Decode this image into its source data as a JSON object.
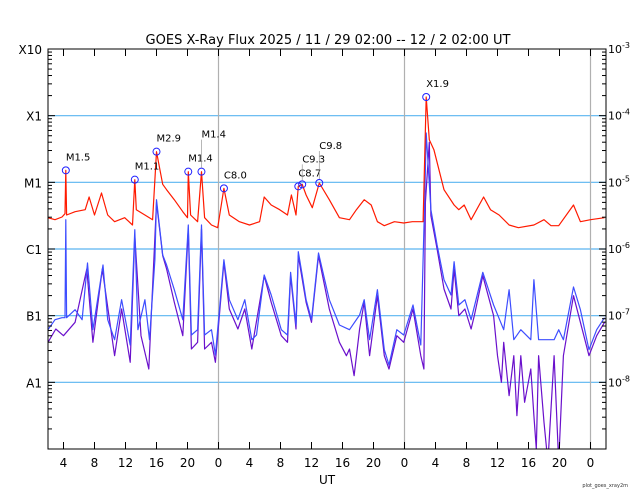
{
  "chart_data": {
    "type": "line",
    "title": "GOES X-Ray Flux   2025 / 11 / 29   02:00 -- 12 /  2   02:00   UT",
    "xlabel": "UT",
    "x_units": "hours since 2025-11-29 02:00 UT",
    "xlim": [
      0,
      72
    ],
    "ylim_log10": [
      -9,
      -3
    ],
    "y_scale": "log",
    "credit": "plot_goes_xray2m",
    "x_ticks": [
      {
        "h": 2,
        "label": "4"
      },
      {
        "h": 6,
        "label": "8"
      },
      {
        "h": 10,
        "label": "12"
      },
      {
        "h": 14,
        "label": "16"
      },
      {
        "h": 18,
        "label": "20"
      },
      {
        "h": 22,
        "label": "0"
      },
      {
        "h": 26,
        "label": "4"
      },
      {
        "h": 30,
        "label": "8"
      },
      {
        "h": 34,
        "label": "12"
      },
      {
        "h": 38,
        "label": "16"
      },
      {
        "h": 42,
        "label": "20"
      },
      {
        "h": 46,
        "label": "0"
      },
      {
        "h": 50,
        "label": "4"
      },
      {
        "h": 54,
        "label": "8"
      },
      {
        "h": 58,
        "label": "12"
      },
      {
        "h": 62,
        "label": "16"
      },
      {
        "h": 66,
        "label": "20"
      },
      {
        "h": 70,
        "label": "0"
      }
    ],
    "day_boundaries_h": [
      22,
      46,
      70
    ],
    "left_axis_labels": [
      {
        "log": -3,
        "label": "X10"
      },
      {
        "log": -4,
        "label": "X1"
      },
      {
        "log": -5,
        "label": "M1"
      },
      {
        "log": -6,
        "label": "C1"
      },
      {
        "log": -7,
        "label": "B1"
      },
      {
        "log": -8,
        "label": "A1"
      }
    ],
    "right_axis_labels": [
      {
        "log": -3,
        "base": "10",
        "exp": "-3"
      },
      {
        "log": -4,
        "base": "10",
        "exp": "-4"
      },
      {
        "log": -5,
        "base": "10",
        "exp": "-5"
      },
      {
        "log": -6,
        "base": "10",
        "exp": "-6"
      },
      {
        "log": -7,
        "base": "10",
        "exp": "-7"
      },
      {
        "log": -8,
        "base": "10",
        "exp": "-8"
      }
    ],
    "class_gridlines_log": [
      -4,
      -5,
      -6,
      -7,
      -8
    ],
    "colors": {
      "long": "#ff1a00",
      "short": "#3d4dff",
      "short_secondary": "#6a10cc",
      "grid": "#5ab4f0",
      "day": "#b0b0b0",
      "marker": "#2020ff"
    },
    "series": [
      {
        "name": "short_secondary",
        "h": [
          0,
          1,
          2,
          3.5,
          5,
          5.8,
          7,
          8.6,
          9.5,
          10.6,
          11.2,
          12,
          13,
          14,
          14.8,
          15.3,
          16.3,
          17.4,
          18.1,
          18.5,
          19.3,
          19.8,
          20.2,
          21.1,
          21.6,
          22.7,
          23.4,
          24.5,
          25.4,
          26.3,
          27.9,
          28.8,
          30.1,
          30.9,
          31.3,
          32,
          32.3,
          33.3,
          34,
          34.9,
          36.3,
          37.6,
          38.5,
          38.9,
          39.5,
          40.2,
          40.8,
          41.5,
          42.5,
          43.4,
          44,
          45,
          45.9,
          47.1,
          48.1,
          48.5,
          48.7,
          49.2,
          49.4,
          50.2,
          51.1,
          52,
          52.4,
          53,
          53.8,
          54.6,
          55,
          56.1,
          57.5,
          58,
          58.5,
          58.8,
          59.5,
          60.1,
          60.5,
          61,
          61.5,
          62.3,
          62.7,
          63,
          63.3,
          64,
          64.5,
          65.3,
          65.9,
          66.5,
          67.8,
          68.7,
          69.8,
          70.8,
          71.8
        ],
        "log": [
          -7.4,
          -7.2,
          -7.3,
          -7.1,
          -6.3,
          -7.4,
          -6.3,
          -7.6,
          -6.9,
          -7.7,
          -5.8,
          -7.3,
          -7.8,
          -5.3,
          -6.1,
          -6.3,
          -6.8,
          -7.3,
          -5.7,
          -7.5,
          -7.4,
          -5.7,
          -7.5,
          -7.4,
          -7.7,
          -6.2,
          -6.9,
          -7.2,
          -6.9,
          -7.5,
          -6.4,
          -6.8,
          -7.3,
          -7.4,
          -6.4,
          -7.2,
          -6.1,
          -6.8,
          -7.1,
          -6.1,
          -6.9,
          -7.4,
          -7.6,
          -7.5,
          -7.9,
          -7.2,
          -6.8,
          -7.6,
          -6.7,
          -7.6,
          -7.8,
          -7.3,
          -7.4,
          -6.9,
          -7.6,
          -7.8,
          -5.3,
          -4.4,
          -5.5,
          -6.0,
          -6.6,
          -6.9,
          -6.3,
          -7.0,
          -6.9,
          -7.2,
          -7.0,
          -6.4,
          -7.0,
          -7.6,
          -8.0,
          -7.4,
          -8.2,
          -7.6,
          -8.5,
          -7.6,
          -8.3,
          -7.8,
          -8.5,
          -9.0,
          -7.6,
          -8.6,
          -9.2,
          -7.6,
          -9.2,
          -7.6,
          -6.7,
          -7.1,
          -7.6,
          -7.3,
          -7.1
        ]
      },
      {
        "name": "short",
        "h": [
          0,
          0.9,
          1.8,
          2.2,
          2.3,
          2.4,
          3.5,
          4.4,
          5.1,
          5.8,
          7.1,
          7.7,
          8.6,
          9.5,
          10.6,
          11.2,
          11.6,
          12.5,
          13.1,
          13.8,
          14,
          14.8,
          15.3,
          16.3,
          17.4,
          18.1,
          18.5,
          19.3,
          19.8,
          20.2,
          21.1,
          21.6,
          22.7,
          23.4,
          24.5,
          25.4,
          26.3,
          26.9,
          27.9,
          28.8,
          30.1,
          30.9,
          31.3,
          32,
          32.3,
          32.8,
          33.3,
          34,
          34.9,
          36.3,
          37.6,
          38.9,
          40.2,
          40.8,
          41.5,
          42.5,
          43.4,
          44,
          45,
          45.9,
          47.1,
          48.1,
          48.6,
          48.8,
          49.4,
          50.2,
          51.1,
          52,
          52.4,
          53,
          53.8,
          54.6,
          56.1,
          57.5,
          58.8,
          59.5,
          60.1,
          61,
          62.3,
          62.7,
          63.3,
          65.3,
          65.9,
          66.5,
          67.8,
          68.7,
          69.8,
          70.8,
          71.8
        ],
        "log": [
          -7.21,
          -7.06,
          -7.03,
          -7.03,
          -5.56,
          -7.03,
          -6.91,
          -7.06,
          -6.21,
          -7.21,
          -6.24,
          -7.06,
          -7.36,
          -6.76,
          -7.44,
          -5.71,
          -7.21,
          -6.76,
          -7.36,
          -6.16,
          -5.26,
          -6.09,
          -6.24,
          -6.61,
          -7.06,
          -5.64,
          -7.29,
          -7.21,
          -5.64,
          -7.29,
          -7.21,
          -7.59,
          -6.16,
          -6.76,
          -7.06,
          -6.76,
          -7.36,
          -7.29,
          -6.39,
          -6.69,
          -7.21,
          -7.29,
          -6.35,
          -7.14,
          -6.04,
          -6.39,
          -6.76,
          -7.06,
          -6.06,
          -6.76,
          -7.14,
          -7.21,
          -6.99,
          -6.76,
          -7.36,
          -6.61,
          -7.51,
          -7.74,
          -7.21,
          -7.29,
          -6.84,
          -7.44,
          -5.26,
          -4.26,
          -5.41,
          -5.94,
          -6.46,
          -6.69,
          -6.19,
          -6.84,
          -6.76,
          -7.06,
          -6.35,
          -6.84,
          -7.21,
          -6.61,
          -7.36,
          -7.21,
          -7.36,
          -6.46,
          -7.36,
          -7.36,
          -7.21,
          -7.36,
          -6.57,
          -6.91,
          -7.51,
          -7.21,
          -7.03
        ]
      },
      {
        "name": "long",
        "h": [
          0,
          0.9,
          1.8,
          2.2,
          2.3,
          2.4,
          3.5,
          4.8,
          5.3,
          6,
          6.9,
          7.7,
          8.6,
          9.9,
          10.9,
          11.2,
          11.4,
          12.5,
          13.5,
          14,
          14.8,
          15.3,
          16.3,
          17.4,
          18,
          18.1,
          18.4,
          19.3,
          19.8,
          20.2,
          21.1,
          21.9,
          22.7,
          23.4,
          24.7,
          26,
          27.3,
          27.9,
          28.8,
          29.9,
          30.9,
          31.4,
          32,
          32.3,
          32.8,
          33.3,
          34.1,
          35,
          36.3,
          37.6,
          38.9,
          39.8,
          40.8,
          41.7,
          42.5,
          43.4,
          44.7,
          45.9,
          47,
          47.9,
          48.4,
          48.8,
          49.2,
          49.8,
          51.1,
          52.4,
          53,
          53.7,
          54.6,
          56.2,
          57.1,
          58.2,
          59.5,
          60.7,
          62.7,
          64,
          64.9,
          65.9,
          67.8,
          68.7,
          70,
          71.8
        ],
        "log": [
          -5.53,
          -5.56,
          -5.52,
          -5.47,
          -4.82,
          -5.49,
          -5.44,
          -5.41,
          -5.22,
          -5.49,
          -5.16,
          -5.49,
          -5.59,
          -5.53,
          -5.64,
          -4.96,
          -5.41,
          -5.49,
          -5.56,
          -4.54,
          -5.03,
          -5.11,
          -5.26,
          -5.44,
          -5.53,
          -4.84,
          -5.49,
          -5.59,
          -4.84,
          -5.53,
          -5.64,
          -5.68,
          -5.09,
          -5.49,
          -5.59,
          -5.64,
          -5.59,
          -5.22,
          -5.34,
          -5.41,
          -5.49,
          -5.19,
          -5.49,
          -5.06,
          -5.03,
          -5.19,
          -5.38,
          -5.01,
          -5.26,
          -5.53,
          -5.56,
          -5.41,
          -5.26,
          -5.34,
          -5.59,
          -5.65,
          -5.59,
          -5.61,
          -5.59,
          -5.59,
          -5.59,
          -3.72,
          -4.36,
          -4.51,
          -5.11,
          -5.34,
          -5.41,
          -5.34,
          -5.56,
          -5.22,
          -5.41,
          -5.49,
          -5.64,
          -5.68,
          -5.64,
          -5.56,
          -5.65,
          -5.65,
          -5.34,
          -5.59,
          -5.56,
          -5.53
        ]
      }
    ],
    "flares": [
      {
        "h": 2.3,
        "log": -4.82,
        "label": "M1.5"
      },
      {
        "h": 11.2,
        "log": -4.96,
        "label": "M1.1"
      },
      {
        "h": 14.0,
        "log": -4.54,
        "label": "M2.9"
      },
      {
        "h": 18.1,
        "log": -4.84,
        "label": "M1.4"
      },
      {
        "h": 19.8,
        "log": -4.84,
        "label": "M1.4"
      },
      {
        "h": 22.7,
        "log": -5.09,
        "label": "C8.0"
      },
      {
        "h": 32.3,
        "log": -5.06,
        "label": "C8.7"
      },
      {
        "h": 32.8,
        "log": -5.03,
        "label": "C9.3"
      },
      {
        "h": 35.0,
        "log": -5.01,
        "label": "C9.8"
      },
      {
        "h": 48.8,
        "log": -3.72,
        "label": "X1.9"
      }
    ]
  }
}
